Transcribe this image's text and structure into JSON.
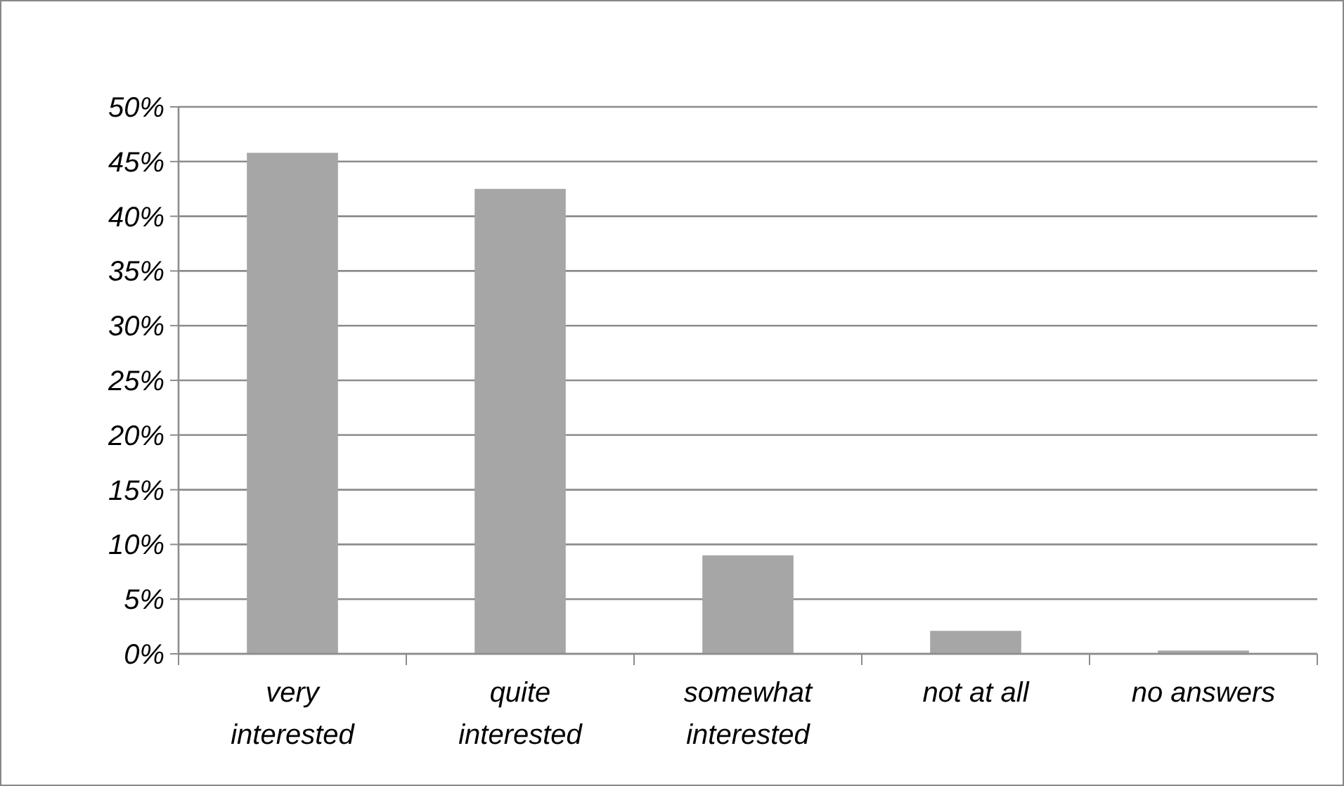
{
  "chart_data": {
    "type": "bar",
    "categories": [
      "very interested",
      "quite interested",
      "somewhat interested",
      "not at all",
      "no answers"
    ],
    "values": [
      45.8,
      42.5,
      9.0,
      2.1,
      0.3
    ],
    "color": "#a6a6a6",
    "ylim": [
      0,
      50
    ],
    "yticks": [
      {
        "value": 0,
        "label": "0%"
      },
      {
        "value": 5,
        "label": "5%"
      },
      {
        "value": 10,
        "label": "10%"
      },
      {
        "value": 15,
        "label": "15%"
      },
      {
        "value": 20,
        "label": "20%"
      },
      {
        "value": 25,
        "label": "25%"
      },
      {
        "value": 30,
        "label": "30%"
      },
      {
        "value": 35,
        "label": "35%"
      },
      {
        "value": 40,
        "label": "40%"
      },
      {
        "value": 45,
        "label": "45%"
      },
      {
        "value": 50,
        "label": "50%"
      }
    ],
    "grid": "y"
  }
}
